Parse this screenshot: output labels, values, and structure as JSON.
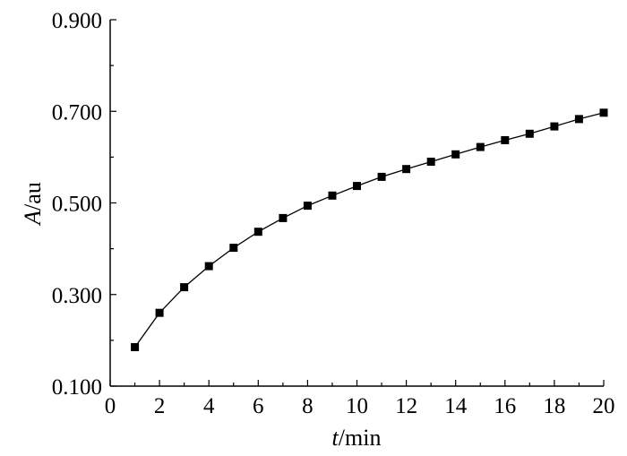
{
  "chart_data": {
    "type": "line",
    "xlabel_var": "t",
    "xlabel_unit": "/min",
    "ylabel_var": "A",
    "ylabel_unit": "/au",
    "xlim": [
      0,
      20
    ],
    "ylim": [
      0.1,
      0.9
    ],
    "xticks": [
      "0",
      "2",
      "4",
      "6",
      "8",
      "10",
      "12",
      "14",
      "16",
      "18",
      "20"
    ],
    "yticks": [
      "0.100",
      "0.300",
      "0.500",
      "0.700",
      "0.900"
    ],
    "grid": false,
    "marker": "square",
    "color": "#000000",
    "series": [
      {
        "x": [
          1,
          2,
          3,
          4,
          5,
          6,
          7,
          8,
          9,
          10,
          11,
          12,
          13,
          14,
          15,
          16,
          17,
          18,
          19,
          20
        ],
        "values": [
          0.185,
          0.26,
          0.316,
          0.362,
          0.402,
          0.437,
          0.467,
          0.494,
          0.516,
          0.537,
          0.557,
          0.574,
          0.59,
          0.606,
          0.622,
          0.637,
          0.651,
          0.667,
          0.683,
          0.697
        ]
      }
    ]
  }
}
